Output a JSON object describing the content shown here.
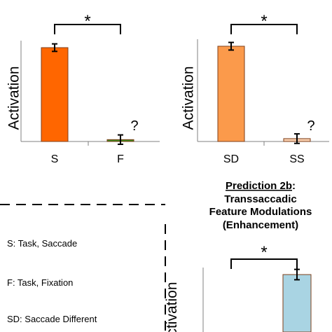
{
  "chart_data": [
    {
      "type": "bar",
      "title": "",
      "ylabel": "Activation",
      "categories": [
        "S",
        "F"
      ],
      "values": [
        100,
        2
      ],
      "errors": [
        4,
        5
      ],
      "colors": [
        "#ff6600",
        "#3b8a1e"
      ],
      "ylim": [
        0,
        110
      ],
      "significance": "*",
      "question": "?"
    },
    {
      "type": "bar",
      "title": "",
      "ylabel": "Activation",
      "categories": [
        "SD",
        "SS"
      ],
      "values": [
        100,
        3
      ],
      "errors": [
        4,
        5
      ],
      "colors": [
        "#fb9a4b",
        "#f8cfae"
      ],
      "ylim": [
        0,
        110
      ],
      "significance": "*",
      "question": "?"
    },
    {
      "type": "bar",
      "title": "",
      "ylabel": "Activation",
      "categories": [
        "",
        ""
      ],
      "values": [
        0,
        100
      ],
      "errors": [
        0,
        5
      ],
      "colors": [
        "#a9d4e3",
        "#a9d4e3"
      ],
      "significance": "*"
    }
  ],
  "prediction_title": {
    "line1": "Prediction 2b",
    "colon": ":",
    "line2": "Transsaccadic",
    "line3": "Feature Modulations",
    "line4": "(Enhancement)"
  },
  "legend": [
    "S: Task, Saccade",
    "F: Task, Fixation",
    "SD: Saccade Different"
  ]
}
